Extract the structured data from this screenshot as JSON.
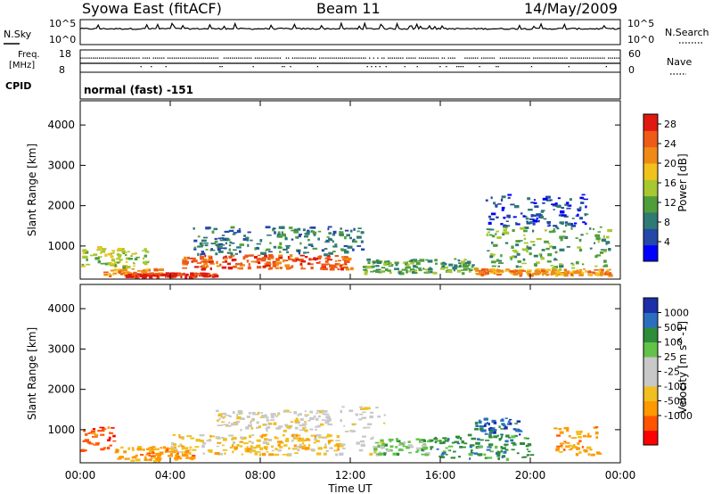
{
  "header": {
    "title": "Syowa East (fitACF)",
    "beam": "Beam 11",
    "date": "14/May/2009"
  },
  "top_panels": {
    "nsky_label": "N.Sky",
    "nsearch_label": "N.Search",
    "nsky_ticks": [
      "10^5",
      "10^0"
    ],
    "nsearch_ticks": [
      "10^5",
      "10^0"
    ],
    "freq_label_1": "Freq.",
    "freq_label_2": "[MHz]",
    "freq_ticks": [
      "18",
      "8"
    ],
    "nave_label": "Nave",
    "nave_ticks": [
      "60",
      "0"
    ],
    "cpid_label": "CPID",
    "cpid_value": "normal (fast) -151"
  },
  "colors": {
    "power_scale": [
      "#0000ff",
      "#2448a8",
      "#2f7a73",
      "#4f9e3a",
      "#a8c832",
      "#f2c21c",
      "#f08a16",
      "#ee5a18",
      "#e01810"
    ],
    "velocity_scale": [
      "#ff0000",
      "#ff5500",
      "#ff9900",
      "#f0c020",
      "#c8c8c8",
      "#c8c8c8",
      "#62c24a",
      "#2f8c3a",
      "#2a6fbf",
      "#1a2fa8"
    ]
  },
  "chart_data": [
    {
      "type": "heatmap",
      "panel": "power",
      "x_label": "Time UT",
      "y_label": "Slant Range [km]",
      "x_ticks": [
        "00:00",
        "04:00",
        "08:00",
        "12:00",
        "16:00",
        "20:00",
        "00:00"
      ],
      "xlim_hours": [
        0,
        24
      ],
      "y_ticks": [
        "1000",
        "2000",
        "3000",
        "4000"
      ],
      "ylim": [
        180,
        4600
      ],
      "colorbar_label": "Power [dB]",
      "colorbar_ticks": [
        "4",
        "8",
        "12",
        "16",
        "20",
        "24",
        "28"
      ],
      "colorbar_range": [
        0,
        30
      ],
      "regions": [
        {
          "t0": 0.0,
          "t1": 3.0,
          "r0": 500,
          "r1": 1000,
          "v": 14
        },
        {
          "t0": 1.0,
          "t1": 3.5,
          "r0": 300,
          "r1": 450,
          "v": 20
        },
        {
          "t0": 2.0,
          "t1": 6.0,
          "r0": 250,
          "r1": 350,
          "v": 27
        },
        {
          "t0": 4.5,
          "t1": 12.0,
          "r0": 450,
          "r1": 800,
          "v": 24
        },
        {
          "t0": 5.0,
          "t1": 12.5,
          "r0": 800,
          "r1": 1500,
          "v": 8
        },
        {
          "t0": 12.5,
          "t1": 17.5,
          "r0": 350,
          "r1": 700,
          "v": 12
        },
        {
          "t0": 17.5,
          "t1": 23.5,
          "r0": 300,
          "r1": 450,
          "v": 22
        },
        {
          "t0": 18.0,
          "t1": 23.5,
          "r0": 450,
          "r1": 1500,
          "v": 10
        },
        {
          "t0": 18.0,
          "t1": 22.5,
          "r0": 1500,
          "r1": 2300,
          "v": 6
        }
      ]
    },
    {
      "type": "heatmap",
      "panel": "velocity",
      "x_label": "Time UT",
      "y_label": "Slant Range [km]",
      "x_ticks": [
        "00:00",
        "04:00",
        "08:00",
        "12:00",
        "16:00",
        "20:00",
        "00:00"
      ],
      "xlim_hours": [
        0,
        24
      ],
      "y_ticks": [
        "1000",
        "2000",
        "3000",
        "4000"
      ],
      "ylim": [
        180,
        4600
      ],
      "colorbar_label": "Velocity [m s^-1]",
      "colorbar_ticks": [
        "1000",
        "500",
        "100",
        "25",
        "-25",
        "-100",
        "-500",
        "-1000"
      ],
      "regions": [
        {
          "t0": 0.0,
          "t1": 1.5,
          "r0": 500,
          "r1": 1100,
          "v": -700
        },
        {
          "t0": 1.5,
          "t1": 5.0,
          "r0": 250,
          "r1": 600,
          "v": -300
        },
        {
          "t0": 4.0,
          "t1": 11.5,
          "r0": 400,
          "r1": 900,
          "v": -80
        },
        {
          "t0": 6.0,
          "t1": 11.0,
          "r0": 1000,
          "r1": 1500,
          "v": 0
        },
        {
          "t0": 11.5,
          "t1": 13.5,
          "r0": 400,
          "r1": 1600,
          "v": 0
        },
        {
          "t0": 13.0,
          "t1": 15.5,
          "r0": 400,
          "r1": 800,
          "v": 60
        },
        {
          "t0": 15.5,
          "t1": 20.0,
          "r0": 300,
          "r1": 900,
          "v": 150
        },
        {
          "t0": 17.5,
          "t1": 19.5,
          "r0": 900,
          "r1": 1300,
          "v": 700
        },
        {
          "t0": 21.0,
          "t1": 23.0,
          "r0": 400,
          "r1": 1100,
          "v": -250
        }
      ]
    }
  ]
}
